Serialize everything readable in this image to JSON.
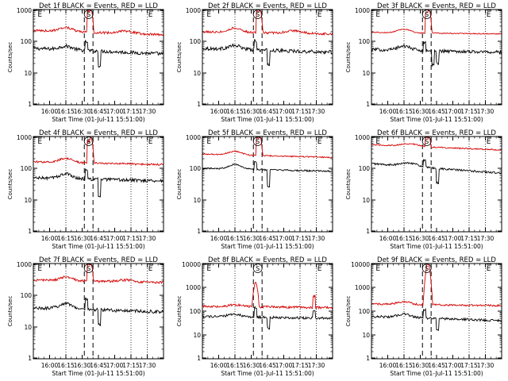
{
  "chart_data": [
    {
      "type": "line",
      "title": "Det 1f BLACK = Events, RED = LLD",
      "xlabel": "Start Time (01-Jul-11 15:51:00)",
      "ylabel": "Counts/sec",
      "yscale": "log",
      "ylim": [
        1,
        1000
      ],
      "ytick_labels": [
        "1000",
        "100",
        "10",
        "1"
      ],
      "xlim_minutes": [
        -15,
        105
      ],
      "xtick_labels": [
        "16:00",
        "16:15",
        "16:30",
        "16:45",
        "17:00",
        "17:15",
        "17:30"
      ],
      "grid": false,
      "markers": {
        "E_left": "E",
        "S": "S",
        "E_right": "E"
      },
      "series": [
        {
          "name": "BLACK",
          "color": "#000000",
          "base_start": 60,
          "base_end": 40,
          "bumps": [
            [
              15,
              1.3,
              8
            ]
          ],
          "spikes": [
            [
              34,
              1.9
            ],
            [
              46,
              0.35
            ]
          ],
          "noise": 0.11
        },
        {
          "name": "RED",
          "color": "#d40000",
          "base_start": 220,
          "base_end": 160,
          "bumps": [
            [
              15,
              1.35,
              8
            ],
            [
              70,
              1.2,
              10
            ]
          ],
          "spikes": [
            [
              36,
              4.5
            ]
          ],
          "noise": 0.07
        }
      ],
      "flare_peak": {
        "series": "RED",
        "value": 1000,
        "time_min": 38
      }
    },
    {
      "type": "line",
      "title": "Det 2f BLACK = Events, RED = LLD",
      "xlabel": "Start Time (01-Jul-11 15:51:00)",
      "ylabel": "Counts/sec",
      "yscale": "log",
      "ylim": [
        1,
        1000
      ],
      "ytick_labels": [
        "1000",
        "100",
        "10",
        "1"
      ],
      "xlim_minutes": [
        -15,
        105
      ],
      "xtick_labels": [
        "16:00",
        "16:15",
        "16:30",
        "16:45",
        "17:00",
        "17:15",
        "17:30"
      ],
      "grid": false,
      "markers": {
        "E_left": "E",
        "S": "S",
        "E_right": "E"
      },
      "series": [
        {
          "name": "BLACK",
          "color": "#000000",
          "base_start": 60,
          "base_end": 45,
          "bumps": [
            [
              15,
              1.3,
              8
            ]
          ],
          "spikes": [
            [
              34,
              1.9
            ],
            [
              46,
              0.35
            ]
          ],
          "noise": 0.11
        },
        {
          "name": "RED",
          "color": "#d40000",
          "base_start": 200,
          "base_end": 170,
          "bumps": [
            [
              15,
              1.35,
              8
            ],
            [
              70,
              1.2,
              10
            ]
          ],
          "spikes": [
            [
              36,
              4.5
            ]
          ],
          "noise": 0.07
        }
      ],
      "flare_peak": {
        "series": "RED",
        "value": 1000,
        "time_min": 38
      }
    },
    {
      "type": "line",
      "title": "Det 3f BLACK = Events, RED = LLD",
      "xlabel": "Start Time (01-Jul-11 15:51:00)",
      "ylabel": "Counts/sec",
      "yscale": "log",
      "ylim": [
        1,
        1000
      ],
      "ytick_labels": [
        "1000",
        "100",
        "10",
        "1"
      ],
      "xlim_minutes": [
        -15,
        105
      ],
      "xtick_labels": [
        "16:00",
        "16:15",
        "16:30",
        "16:45",
        "17:00",
        "17:15",
        "17:30"
      ],
      "grid": false,
      "markers": {
        "E_left": "E",
        "S": "S",
        "E_right": "E"
      },
      "series": [
        {
          "name": "BLACK",
          "color": "#000000",
          "base_start": 55,
          "base_end": 45,
          "bumps": [
            [
              15,
              1.35,
              8
            ]
          ],
          "spikes": [
            [
              34,
              1.8
            ],
            [
              42,
              0.35
            ],
            [
              46,
              0.4
            ]
          ],
          "noise": 0.1
        },
        {
          "name": "RED",
          "color": "#d40000",
          "base_start": 190,
          "base_end": 170,
          "bumps": [
            [
              15,
              1.3,
              8
            ]
          ],
          "spikes": [
            [
              36,
              4.5
            ]
          ],
          "noise": 0.03
        }
      ],
      "flare_peak": {
        "series": "RED",
        "value": 1000,
        "time_min": 38
      }
    },
    {
      "type": "line",
      "title": "Det 4f BLACK = Events, RED = LLD",
      "xlabel": "Start Time (01-Jul-11 15:51:00)",
      "ylabel": "Counts/sec",
      "yscale": "log",
      "ylim": [
        1,
        1000
      ],
      "ytick_labels": [
        "1000",
        "100",
        "10",
        "1"
      ],
      "xlim_minutes": [
        -15,
        105
      ],
      "xtick_labels": [
        "16:00",
        "16:15",
        "16:30",
        "16:45",
        "17:00",
        "17:15",
        "17:30"
      ],
      "grid": false,
      "markers": {
        "E_left": "E",
        "S": "S",
        "E_right": "E"
      },
      "series": [
        {
          "name": "BLACK",
          "color": "#000000",
          "base_start": 50,
          "base_end": 40,
          "bumps": [
            [
              15,
              1.4,
              8
            ]
          ],
          "spikes": [
            [
              34,
              1.9
            ],
            [
              46,
              0.3
            ]
          ],
          "noise": 0.1
        },
        {
          "name": "RED",
          "color": "#d40000",
          "base_start": 160,
          "base_end": 130,
          "bumps": [
            [
              15,
              1.35,
              8
            ]
          ],
          "spikes": [
            [
              36,
              4.8
            ]
          ],
          "noise": 0.06
        }
      ],
      "flare_peak": {
        "series": "RED",
        "value": 1000,
        "time_min": 38
      }
    },
    {
      "type": "line",
      "title": "Det 5f BLACK = Events, RED = LLD",
      "xlabel": "Start Time (01-Jul-11 15:51:00)",
      "ylabel": "Counts/sec",
      "yscale": "log",
      "ylim": [
        1,
        1000
      ],
      "ytick_labels": [
        "1000",
        "100",
        "10",
        "1"
      ],
      "xlim_minutes": [
        -15,
        105
      ],
      "xtick_labels": [
        "16:00",
        "16:15",
        "16:30",
        "16:45",
        "17:00",
        "17:15",
        "17:30"
      ],
      "grid": false,
      "markers": {
        "E_left": "E",
        "S": "S",
        "E_right": "E"
      },
      "series": [
        {
          "name": "BLACK",
          "color": "#000000",
          "base_start": 100,
          "base_end": 80,
          "bumps": [
            [
              15,
              1.4,
              8
            ]
          ],
          "spikes": [
            [
              34,
              1.7
            ],
            [
              46,
              0.3
            ]
          ],
          "noise": 0.05
        },
        {
          "name": "RED",
          "color": "#d40000",
          "base_start": 280,
          "base_end": 220,
          "bumps": [
            [
              15,
              1.3,
              8
            ]
          ],
          "spikes": [
            [
              36,
              3.5
            ]
          ],
          "noise": 0.04
        }
      ],
      "flare_peak": {
        "series": "RED",
        "value": 1000,
        "time_min": 38
      }
    },
    {
      "type": "line",
      "title": "Det 6f BLACK = Events, RED = LLD",
      "xlabel": "Start Time (01-Jul-11 15:51:00)",
      "ylabel": "Counts/sec",
      "yscale": "log",
      "ylim": [
        1,
        1000
      ],
      "ytick_labels": [
        "1000",
        "100",
        "10",
        "1"
      ],
      "xlim_minutes": [
        -15,
        105
      ],
      "xtick_labels": [
        "16:00",
        "16:15",
        "16:30",
        "16:45",
        "17:00",
        "17:15",
        "17:30"
      ],
      "grid": false,
      "markers": {
        "E_left": "E",
        "S": "S",
        "E_right": "E"
      },
      "series": [
        {
          "name": "BLACK",
          "color": "#000000",
          "base_start": 140,
          "base_end": 70,
          "bumps": [
            [
              20,
              1.3,
              10
            ]
          ],
          "spikes": [
            [
              34,
              1.6
            ],
            [
              46,
              0.35
            ]
          ],
          "noise": 0.06
        },
        {
          "name": "RED",
          "color": "#d40000",
          "base_start": 550,
          "base_end": 380,
          "bumps": [
            [
              20,
              1.2,
              10
            ]
          ],
          "spikes": [
            [
              36,
              2.0
            ]
          ],
          "noise": 0.04
        }
      ],
      "flare_peak": {
        "series": "RED",
        "value": 1000,
        "time_min": 38
      }
    },
    {
      "type": "line",
      "title": "Det 7f BLACK = Events, RED = LLD",
      "xlabel": "Start Time (01-Jul-11 15:51:00)",
      "ylabel": "Counts/sec",
      "yscale": "log",
      "ylim": [
        1,
        1000
      ],
      "ytick_labels": [
        "1000",
        "100",
        "10",
        "1"
      ],
      "xlim_minutes": [
        -15,
        105
      ],
      "xtick_labels": [
        "16:00",
        "16:15",
        "16:30",
        "16:45",
        "17:00",
        "17:15",
        "17:30"
      ],
      "grid": false,
      "markers": {
        "E_left": "E",
        "S": "S",
        "E_right": "E"
      },
      "series": [
        {
          "name": "BLACK",
          "color": "#000000",
          "base_start": 40,
          "base_end": 30,
          "bumps": [
            [
              15,
              1.5,
              8
            ]
          ],
          "spikes": [
            [
              34,
              2.2
            ],
            [
              46,
              0.35
            ]
          ],
          "noise": 0.1
        },
        {
          "name": "RED",
          "color": "#d40000",
          "base_start": 300,
          "base_end": 250,
          "bumps": [
            [
              15,
              1.3,
              8
            ],
            [
              70,
              1.15,
              10
            ]
          ],
          "spikes": [
            [
              36,
              3.5
            ]
          ],
          "noise": 0.08
        }
      ],
      "flare_peak": {
        "series": "RED",
        "value": 1000,
        "time_min": 38
      }
    },
    {
      "type": "line",
      "title": "Det 8f BLACK = Events, RED = LLD",
      "xlabel": "Start Time (01-Jul-11 15:51:00)",
      "ylabel": "Counts/sec",
      "yscale": "log",
      "ylim": [
        1,
        10000
      ],
      "ytick_labels": [
        "10000",
        "1000",
        "100",
        "10",
        "1"
      ],
      "xlim_minutes": [
        -15,
        105
      ],
      "xtick_labels": [
        "16:00",
        "16:15",
        "16:30",
        "16:45",
        "17:00",
        "17:15",
        "17:30"
      ],
      "grid": false,
      "markers": {
        "E_left": "E",
        "S": "S",
        "E_right": "E"
      },
      "series": [
        {
          "name": "BLACK",
          "color": "#000000",
          "base_start": 60,
          "base_end": 50,
          "bumps": [
            [
              15,
              1.3,
              8
            ]
          ],
          "spikes": [
            [
              34,
              2.5
            ],
            [
              46,
              0.35
            ],
            [
              88,
              2.0
            ]
          ],
          "noise": 0.1
        },
        {
          "name": "RED",
          "color": "#d40000",
          "base_start": 160,
          "base_end": 140,
          "bumps": [
            [
              15,
              1.2,
              8
            ]
          ],
          "spikes": [
            [
              88,
              3.0
            ]
          ],
          "noise": 0.1
        }
      ],
      "flare_peak": {
        "series": "RED",
        "value": 1500,
        "time_min": 34
      }
    },
    {
      "type": "line",
      "title": "Det 9f BLACK = Events, RED = LLD",
      "xlabel": "Start Time (01-Jul-11 15:51:00)",
      "ylabel": "Counts/sec",
      "yscale": "log",
      "ylim": [
        1,
        10000
      ],
      "ytick_labels": [
        "10000",
        "1000",
        "100",
        "10",
        "1"
      ],
      "xlim_minutes": [
        -15,
        105
      ],
      "xtick_labels": [
        "16:00",
        "16:15",
        "16:30",
        "16:45",
        "17:00",
        "17:15",
        "17:30"
      ],
      "grid": false,
      "markers": {
        "E_left": "E",
        "S": "S",
        "E_right": "E"
      },
      "series": [
        {
          "name": "BLACK",
          "color": "#000000",
          "base_start": 60,
          "base_end": 40,
          "bumps": [
            [
              15,
              1.4,
              8
            ]
          ],
          "spikes": [
            [
              34,
              2.2
            ],
            [
              46,
              0.35
            ]
          ],
          "noise": 0.1
        },
        {
          "name": "RED",
          "color": "#d40000",
          "base_start": 200,
          "base_end": 170,
          "bumps": [
            [
              15,
              1.3,
              8
            ]
          ],
          "spikes": [
            [
              36,
              4.0
            ]
          ],
          "noise": 0.08
        }
      ],
      "flare_peak": {
        "series": "RED",
        "value": 10000,
        "time_min": 37
      }
    }
  ]
}
